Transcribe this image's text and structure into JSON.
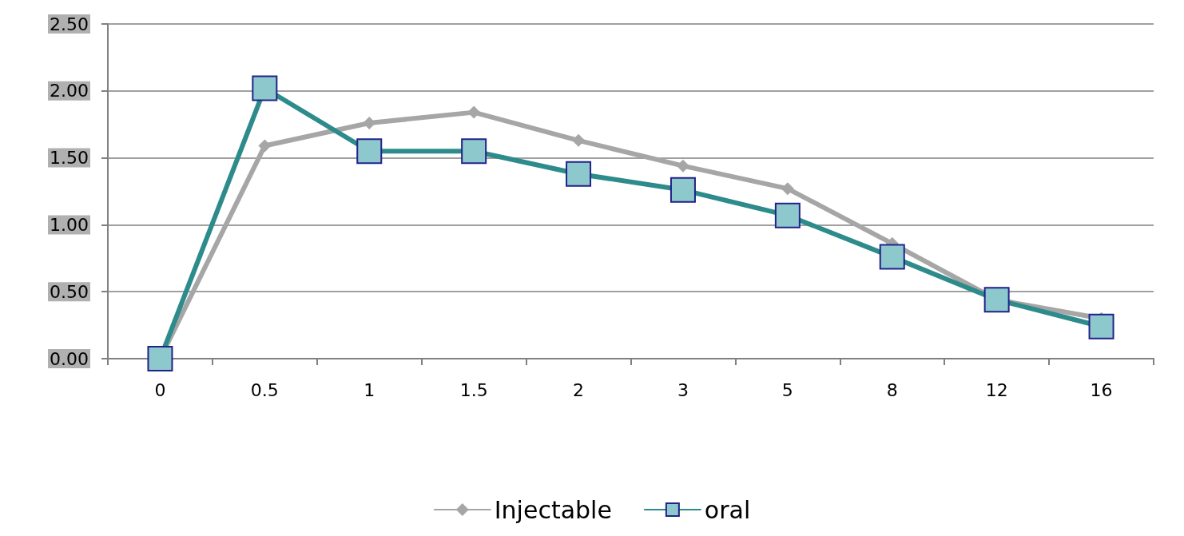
{
  "chart_data": {
    "type": "line",
    "categories": [
      "0",
      "0.5",
      "1",
      "1.5",
      "2",
      "3",
      "5",
      "8",
      "12",
      "16"
    ],
    "series": [
      {
        "name": "Injectable",
        "color": "#a6a6a6",
        "marker": "diamond",
        "values": [
          0,
          1.59,
          1.76,
          1.84,
          1.63,
          1.44,
          1.27,
          0.86,
          0.44,
          0.3
        ]
      },
      {
        "name": "oral",
        "color": "#2e8b8b",
        "marker": "square",
        "values": [
          0,
          2.02,
          1.55,
          1.55,
          1.38,
          1.26,
          1.07,
          0.76,
          0.44,
          0.24
        ]
      }
    ],
    "ylim": [
      0,
      2.5
    ],
    "yticks": [
      {
        "value": 0,
        "label": "0.00"
      },
      {
        "value": 0.5,
        "label": "0.50"
      },
      {
        "value": 1,
        "label": "1.00"
      },
      {
        "value": 1.5,
        "label": "1.50"
      },
      {
        "value": 2,
        "label": "2.00"
      },
      {
        "value": 2.5,
        "label": "2.50"
      }
    ],
    "grid": "y",
    "legend": "bottom",
    "line_style": "solid"
  }
}
